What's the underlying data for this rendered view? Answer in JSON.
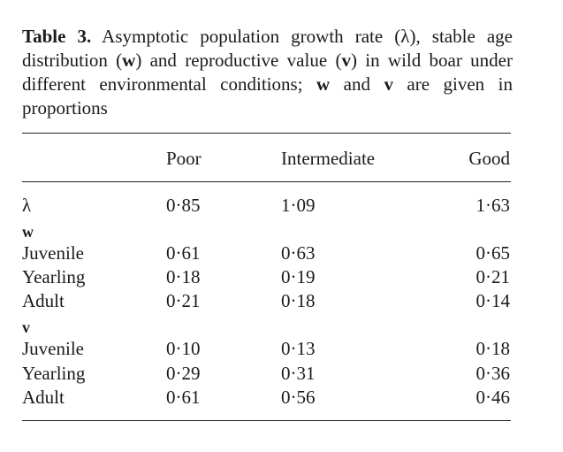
{
  "caption": {
    "label": "Table 3.",
    "part1": " Asymptotic population growth rate (λ), stable age distribution (",
    "w1": "w",
    "part2": ") and reproductive value (",
    "v1": "v",
    "part3": ") in wild boar under different environmental conditions; ",
    "w2": "w",
    "part4": " and ",
    "v2": "v",
    "part5": " are given in proportions"
  },
  "columns": [
    "Poor",
    "Intermediate",
    "Good"
  ],
  "rows": [
    {
      "label": "λ",
      "values": [
        "0·85",
        "1·09",
        "1·63"
      ]
    },
    {
      "label": "w",
      "group": true
    },
    {
      "label": "Juvenile",
      "values": [
        "0·61",
        "0·63",
        "0·65"
      ]
    },
    {
      "label": "Yearling",
      "values": [
        "0·18",
        "0·19",
        "0·21"
      ]
    },
    {
      "label": "Adult",
      "values": [
        "0·21",
        "0·18",
        "0·14"
      ]
    },
    {
      "label": "v",
      "group": true
    },
    {
      "label": "Juvenile",
      "values": [
        "0·10",
        "0·13",
        "0·18"
      ]
    },
    {
      "label": "Yearling",
      "values": [
        "0·29",
        "0·31",
        "0·36"
      ]
    },
    {
      "label": "Adult",
      "values": [
        "0·61",
        "0·56",
        "0·46"
      ]
    }
  ]
}
